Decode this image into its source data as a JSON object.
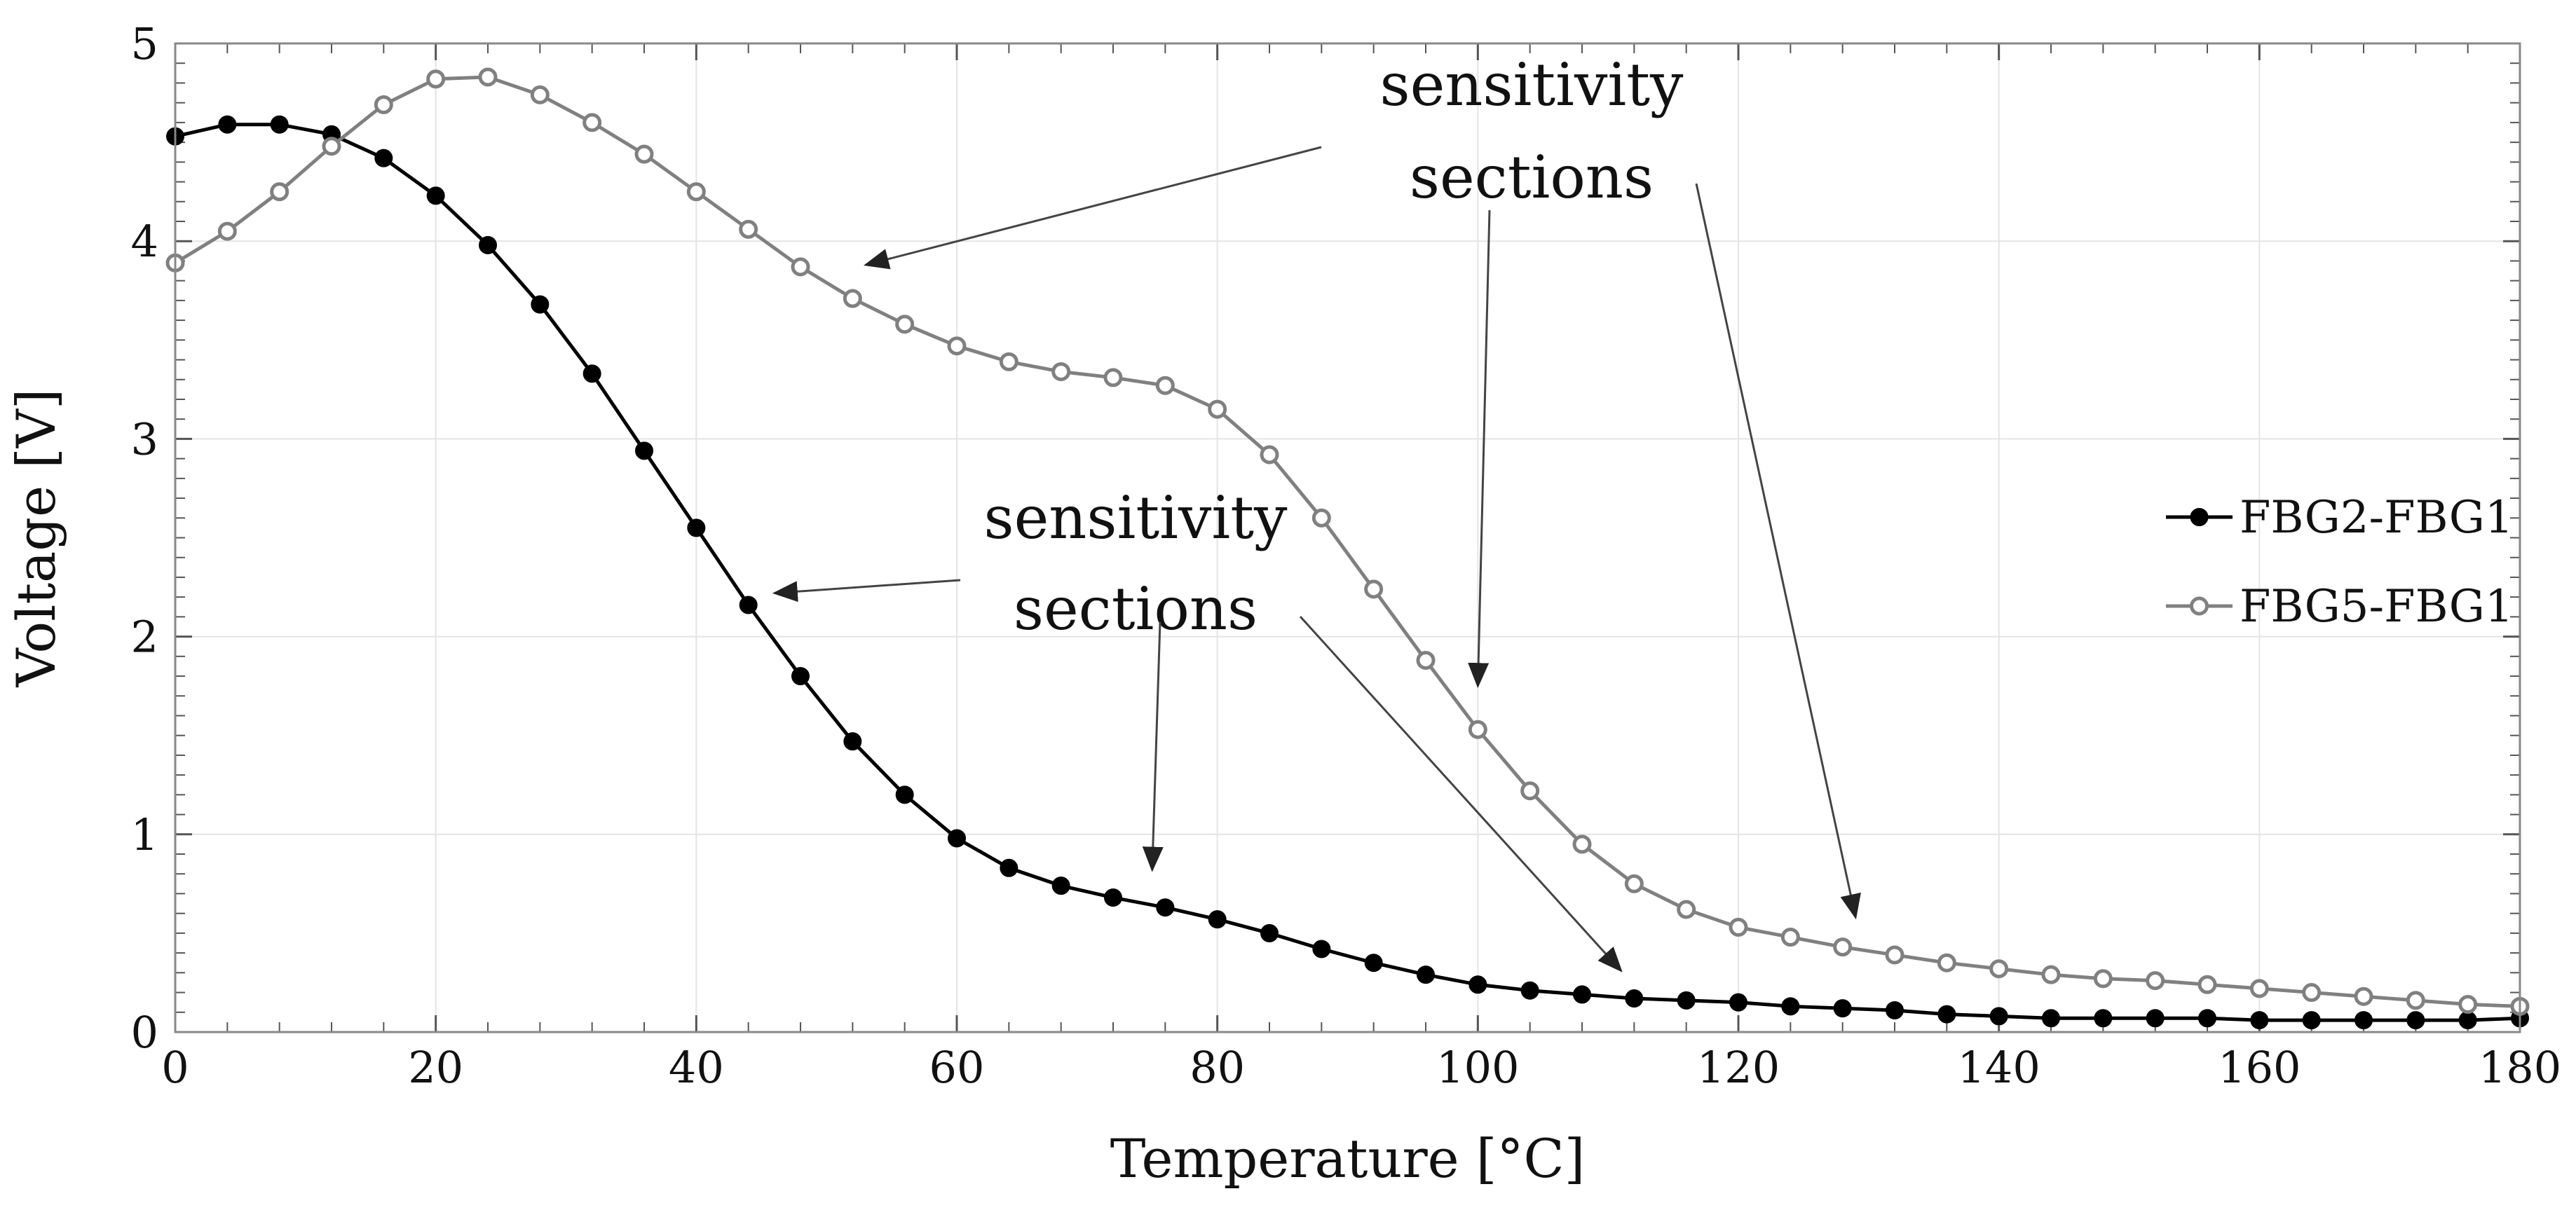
{
  "chart_data": {
    "type": "line",
    "title": "",
    "xlabel": "Temperature [°C]",
    "ylabel": "Voltage [V]",
    "xlim": [
      0,
      180
    ],
    "ylim": [
      0,
      5
    ],
    "xticks": [
      0,
      20,
      40,
      60,
      80,
      100,
      120,
      140,
      160,
      180
    ],
    "yticks": [
      0,
      1,
      2,
      3,
      4,
      5
    ],
    "grid": true,
    "legend_position": "right",
    "x": [
      0,
      4,
      8,
      12,
      16,
      20,
      24,
      28,
      32,
      36,
      40,
      44,
      48,
      52,
      56,
      60,
      64,
      68,
      72,
      76,
      80,
      84,
      88,
      92,
      96,
      100,
      104,
      108,
      112,
      116,
      120,
      124,
      128,
      132,
      136,
      140,
      144,
      148,
      152,
      156,
      160,
      164,
      168,
      172,
      176,
      180
    ],
    "series": [
      {
        "name": "FBG2-FBG1",
        "color": "#000000",
        "marker": "filled-circle",
        "values": [
          4.53,
          4.59,
          4.59,
          4.54,
          4.42,
          4.23,
          3.98,
          3.68,
          3.33,
          2.94,
          2.55,
          2.16,
          1.8,
          1.47,
          1.2,
          0.98,
          0.83,
          0.74,
          0.68,
          0.63,
          0.57,
          0.5,
          0.42,
          0.35,
          0.29,
          0.24,
          0.21,
          0.19,
          0.17,
          0.16,
          0.15,
          0.13,
          0.12,
          0.11,
          0.09,
          0.08,
          0.07,
          0.07,
          0.07,
          0.07,
          0.06,
          0.06,
          0.06,
          0.06,
          0.06,
          0.07
        ]
      },
      {
        "name": "FBG5-FBG1",
        "color": "#808080",
        "marker": "open-circle",
        "values": [
          3.89,
          4.05,
          4.25,
          4.48,
          4.69,
          4.82,
          4.83,
          4.74,
          4.6,
          4.44,
          4.25,
          4.06,
          3.87,
          3.71,
          3.58,
          3.47,
          3.39,
          3.34,
          3.31,
          3.27,
          3.15,
          2.92,
          2.6,
          2.24,
          1.88,
          1.53,
          1.22,
          0.95,
          0.75,
          0.62,
          0.53,
          0.48,
          0.43,
          0.39,
          0.35,
          0.32,
          0.29,
          0.27,
          0.26,
          0.24,
          0.22,
          0.2,
          0.18,
          0.16,
          0.14,
          0.13
        ]
      }
    ],
    "annotations": [
      {
        "line1": "sensitivity",
        "line2": "sections",
        "anchor": [
          104,
          4.5
        ],
        "arrows_to": [
          [
            53,
            3.88
          ],
          [
            100,
            1.75
          ],
          [
            129,
            0.58
          ]
        ]
      },
      {
        "line1": "sensitivity",
        "line2": "sections",
        "anchor": [
          74,
          2.05
        ],
        "arrows_to": [
          [
            46,
            2.22
          ],
          [
            75,
            0.82
          ],
          [
            111,
            0.31
          ]
        ]
      }
    ]
  }
}
